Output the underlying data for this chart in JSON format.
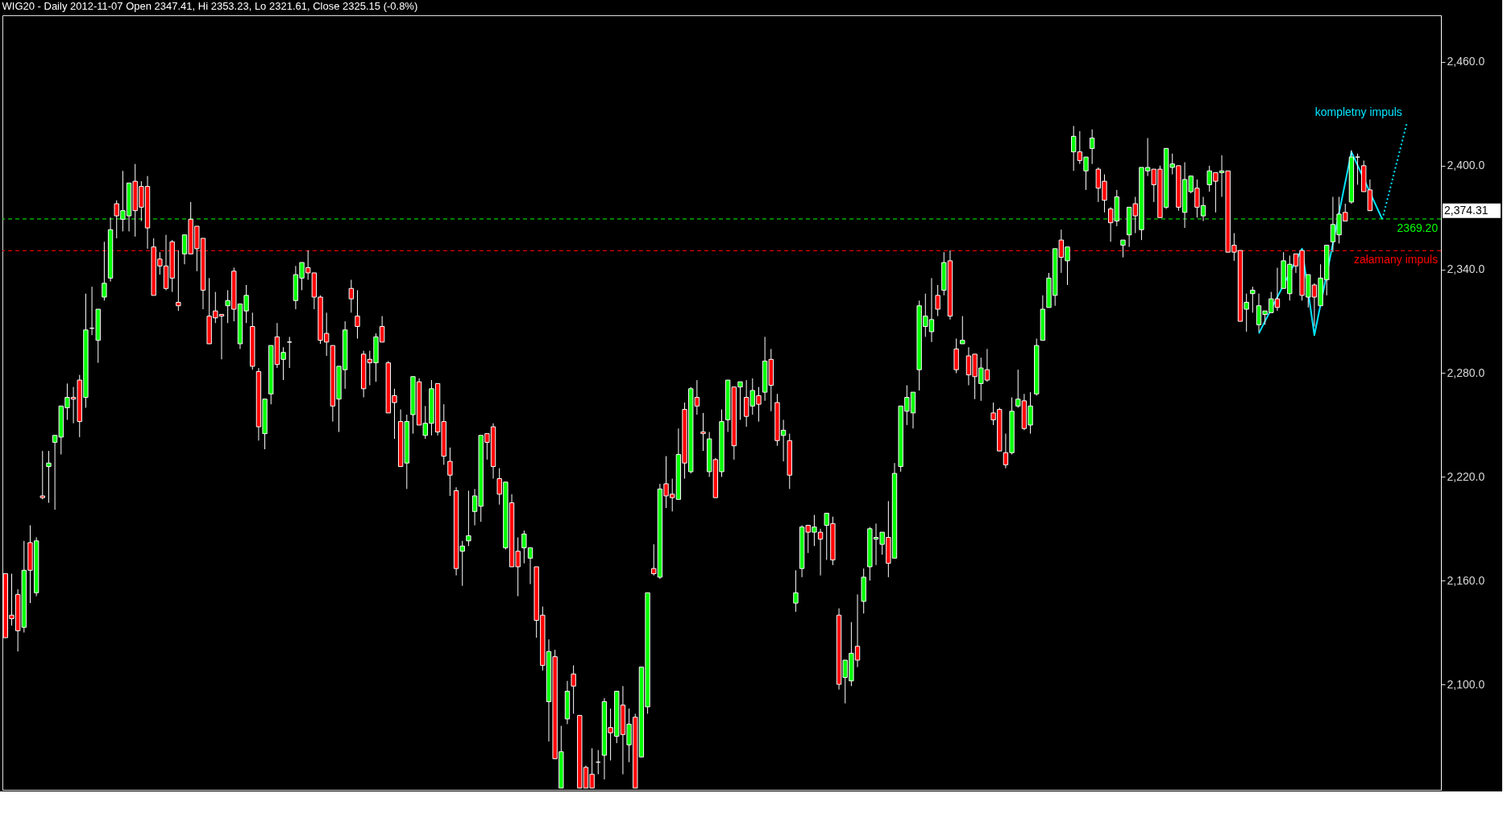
{
  "chart_data": {
    "type": "candlestick",
    "title": "WIG20 - Daily 2012-11-07 Open 2347.41, Hi 2353.23, Lo 2321.61, Close 2325.15 (-0.8%)",
    "categories": [
      null,
      null,
      null,
      null,
      null,
      null,
      null,
      null,
      null,
      null,
      null,
      null,
      null,
      null,
      null,
      null,
      null,
      null,
      null,
      null,
      null,
      null,
      null,
      null,
      null,
      null,
      null,
      null,
      null,
      null,
      null,
      null,
      null,
      null,
      null,
      null,
      null,
      null,
      null,
      null,
      null,
      null,
      null,
      null,
      null,
      null,
      null,
      null,
      null,
      null,
      null,
      null,
      null,
      null,
      null,
      null,
      null,
      null,
      null,
      null,
      null,
      null,
      null,
      null,
      null,
      null,
      null,
      null,
      null,
      null,
      null,
      null,
      null,
      null,
      null,
      null,
      null,
      null,
      null,
      null,
      null,
      null,
      null,
      null,
      null,
      null,
      null,
      null,
      null,
      null,
      null,
      null,
      null,
      null,
      null,
      null,
      null,
      null,
      null,
      null,
      null,
      null,
      null,
      null,
      null,
      null,
      null,
      null,
      null,
      null,
      null,
      null,
      null,
      null,
      null,
      null,
      null,
      null,
      null,
      null,
      null,
      null,
      null,
      null,
      null,
      null,
      null,
      null,
      null,
      null,
      null,
      null,
      null,
      null,
      null,
      null,
      null,
      null,
      null,
      null,
      null,
      null,
      null,
      null,
      null,
      null,
      null,
      null,
      null,
      null,
      null,
      null,
      null,
      null,
      null,
      null,
      null,
      null,
      null,
      null,
      null,
      null,
      null,
      null,
      null,
      null,
      null,
      null,
      null,
      null,
      null,
      null,
      null,
      null,
      null,
      null,
      null,
      null,
      null,
      null,
      null,
      null,
      null,
      null,
      null,
      null,
      null,
      null,
      null,
      null,
      null,
      null,
      null,
      null,
      null,
      null,
      null,
      null,
      null,
      null,
      null,
      null,
      null,
      null,
      null,
      null,
      null,
      null,
      null,
      null,
      null,
      null,
      null,
      null,
      null,
      null,
      null,
      null,
      null,
      null,
      null,
      null,
      null,
      null,
      null,
      null,
      null,
      null,
      null,
      null,
      null,
      null,
      null
    ],
    "ohlc": [
      [
        2164,
        2164,
        2127,
        2127
      ],
      [
        2140,
        2164,
        2134,
        2138
      ],
      [
        2152,
        2155,
        2119,
        2131
      ],
      [
        2133,
        2183,
        2130,
        2166
      ],
      [
        2182,
        2192,
        2147,
        2166
      ],
      [
        2153,
        2185,
        2151,
        2183
      ],
      [
        2209,
        2235,
        2207,
        2208
      ],
      [
        2226,
        2235,
        2205,
        2228
      ],
      [
        2240,
        2244,
        2201,
        2244
      ],
      [
        2243,
        2261,
        2233,
        2261
      ],
      [
        2260,
        2274,
        2253,
        2266
      ],
      [
        2266,
        2272,
        2251,
        2265
      ],
      [
        2276,
        2279,
        2243,
        2252
      ],
      [
        2266,
        2326,
        2260,
        2305
      ],
      [
        2306,
        2330,
        2302,
        2306
      ],
      [
        2299,
        2317,
        2286,
        2317
      ],
      [
        2324,
        2356,
        2322,
        2332
      ],
      [
        2335,
        2370,
        2333,
        2363
      ],
      [
        2378,
        2380,
        2358,
        2371
      ],
      [
        2369,
        2397,
        2362,
        2374
      ],
      [
        2371,
        2390,
        2362,
        2390
      ],
      [
        2391,
        2401,
        2359,
        2374
      ],
      [
        2388,
        2391,
        2368,
        2376
      ],
      [
        2388,
        2394,
        2352,
        2364
      ],
      [
        2353,
        2358,
        2325,
        2325
      ],
      [
        2346,
        2350,
        2337,
        2342
      ],
      [
        2342,
        2360,
        2328,
        2329
      ],
      [
        2356,
        2357,
        2327,
        2335
      ],
      [
        2321,
        2351,
        2316,
        2319
      ],
      [
        2349,
        2360,
        2343,
        2360
      ],
      [
        2369,
        2379,
        2349,
        2349
      ],
      [
        2365,
        2365,
        2339,
        2352
      ],
      [
        2358,
        2358,
        2317,
        2328
      ],
      [
        2313,
        2335,
        2297,
        2297
      ],
      [
        2316,
        2327,
        2309,
        2312
      ],
      [
        2314,
        2314,
        2288,
        2313
      ],
      [
        2319,
        2328,
        2309,
        2322
      ],
      [
        2339,
        2341,
        2310,
        2317
      ],
      [
        2297,
        2320,
        2294,
        2320
      ],
      [
        2316,
        2331,
        2309,
        2325
      ],
      [
        2307,
        2315,
        2282,
        2284
      ],
      [
        2281,
        2283,
        2241,
        2249
      ],
      [
        2245,
        2265,
        2236,
        2265
      ],
      [
        2268,
        2296,
        2262,
        2296
      ],
      [
        2301,
        2309,
        2283,
        2285
      ],
      [
        2288,
        2295,
        2276,
        2292
      ],
      [
        2298,
        2301,
        2283,
        2298
      ],
      [
        2322,
        2342,
        2317,
        2337
      ],
      [
        2335,
        2344,
        2328,
        2344
      ],
      [
        2341,
        2351,
        2334,
        2338
      ],
      [
        2338,
        2338,
        2317,
        2324
      ],
      [
        2324,
        2325,
        2297,
        2299
      ],
      [
        2303,
        2315,
        2290,
        2298
      ],
      [
        2296,
        2296,
        2252,
        2261
      ],
      [
        2265,
        2284,
        2246,
        2284
      ],
      [
        2282,
        2310,
        2271,
        2305
      ],
      [
        2329,
        2334,
        2315,
        2323
      ],
      [
        2313,
        2328,
        2300,
        2307
      ],
      [
        2291,
        2293,
        2266,
        2271
      ],
      [
        2288,
        2293,
        2273,
        2286
      ],
      [
        2286,
        2303,
        2275,
        2301
      ],
      [
        2307,
        2313,
        2298,
        2298
      ],
      [
        2286,
        2287,
        2257,
        2257
      ],
      [
        2267,
        2271,
        2242,
        2263
      ],
      [
        2252,
        2259,
        2226,
        2226
      ],
      [
        2228,
        2256,
        2213,
        2252
      ],
      [
        2256,
        2278,
        2245,
        2278
      ],
      [
        2275,
        2277,
        2250,
        2250
      ],
      [
        2244,
        2261,
        2242,
        2251
      ],
      [
        2251,
        2276,
        2244,
        2271
      ],
      [
        2274,
        2274,
        2244,
        2246
      ],
      [
        2252,
        2262,
        2227,
        2232
      ],
      [
        2229,
        2237,
        2209,
        2221
      ],
      [
        2212,
        2214,
        2163,
        2167
      ],
      [
        2177,
        2183,
        2157,
        2180
      ],
      [
        2183,
        2212,
        2180,
        2186
      ],
      [
        2200,
        2213,
        2192,
        2209
      ],
      [
        2203,
        2244,
        2194,
        2244
      ],
      [
        2245,
        2245,
        2230,
        2240
      ],
      [
        2249,
        2251,
        2219,
        2226
      ],
      [
        2219,
        2225,
        2204,
        2210
      ],
      [
        2179,
        2217,
        2178,
        2217
      ],
      [
        2205,
        2210,
        2168,
        2168
      ],
      [
        2177,
        2185,
        2151,
        2168
      ],
      [
        2179,
        2189,
        2170,
        2187
      ],
      [
        2173,
        2179,
        2158,
        2179
      ],
      [
        2168,
        2168,
        2127,
        2137
      ],
      [
        2140,
        2145,
        2108,
        2111
      ],
      [
        2090,
        2126,
        2067,
        2119
      ],
      [
        2116,
        2120,
        2057,
        2057
      ],
      [
        2040,
        2076,
        2040,
        2061
      ],
      [
        2080,
        2102,
        2077,
        2096
      ],
      [
        2106,
        2111,
        2083,
        2099
      ],
      [
        2082,
        2082,
        2040,
        2040
      ],
      [
        2052,
        2053,
        2040,
        2040
      ],
      [
        2048,
        2063,
        2040,
        2040
      ],
      [
        2055,
        2062,
        2048,
        2055
      ],
      [
        2059,
        2092,
        2045,
        2090
      ],
      [
        2075,
        2086,
        2056,
        2072
      ],
      [
        2070,
        2096,
        2066,
        2096
      ],
      [
        2088,
        2099,
        2048,
        2071
      ],
      [
        2065,
        2086,
        2055,
        2077
      ],
      [
        2081,
        2083,
        2040,
        2040
      ],
      [
        2058,
        2110,
        2058,
        2110
      ],
      [
        2087,
        2153,
        2083,
        2153
      ],
      [
        2167,
        2181,
        2163,
        2164
      ],
      [
        2162,
        2216,
        2161,
        2213
      ],
      [
        2216,
        2232,
        2202,
        2209
      ],
      [
        2210,
        2219,
        2200,
        2208
      ],
      [
        2207,
        2248,
        2207,
        2233
      ],
      [
        2259,
        2263,
        2219,
        2228
      ],
      [
        2223,
        2272,
        2222,
        2271
      ],
      [
        2266,
        2276,
        2256,
        2261
      ],
      [
        2246,
        2257,
        2235,
        2245
      ],
      [
        2223,
        2246,
        2220,
        2242
      ],
      [
        2230,
        2231,
        2208,
        2208
      ],
      [
        2223,
        2259,
        2220,
        2252
      ],
      [
        2253,
        2276,
        2246,
        2276
      ],
      [
        2272,
        2272,
        2230,
        2238
      ],
      [
        2272,
        2275,
        2253,
        2275
      ],
      [
        2266,
        2276,
        2249,
        2255
      ],
      [
        2261,
        2277,
        2256,
        2270
      ],
      [
        2267,
        2272,
        2252,
        2262
      ],
      [
        2269,
        2301,
        2264,
        2287
      ],
      [
        2288,
        2294,
        2258,
        2273
      ],
      [
        2263,
        2268,
        2238,
        2241
      ],
      [
        2244,
        2253,
        2229,
        2247
      ],
      [
        2241,
        2245,
        2213,
        2221
      ],
      [
        2147,
        2166,
        2142,
        2153
      ],
      [
        2167,
        2192,
        2162,
        2191
      ],
      [
        2192,
        2192,
        2176,
        2188
      ],
      [
        2188,
        2198,
        2180,
        2191
      ],
      [
        2188,
        2190,
        2163,
        2184
      ],
      [
        2192,
        2199,
        2172,
        2199
      ],
      [
        2193,
        2197,
        2169,
        2172
      ],
      [
        2140,
        2144,
        2097,
        2100
      ],
      [
        2104,
        2114,
        2089,
        2114
      ],
      [
        2102,
        2136,
        2099,
        2118
      ],
      [
        2122,
        2152,
        2110,
        2114
      ],
      [
        2148,
        2167,
        2141,
        2162
      ],
      [
        2168,
        2191,
        2160,
        2190
      ],
      [
        2184,
        2193,
        2169,
        2185
      ],
      [
        2181,
        2188,
        2175,
        2188
      ],
      [
        2185,
        2206,
        2162,
        2170
      ],
      [
        2173,
        2228,
        2173,
        2222
      ],
      [
        2226,
        2261,
        2223,
        2261
      ],
      [
        2258,
        2273,
        2250,
        2266
      ],
      [
        2257,
        2269,
        2248,
        2269
      ],
      [
        2282,
        2322,
        2270,
        2319
      ],
      [
        2307,
        2326,
        2301,
        2313
      ],
      [
        2304,
        2335,
        2298,
        2311
      ],
      [
        2325,
        2331,
        2313,
        2317
      ],
      [
        2328,
        2350,
        2325,
        2344
      ],
      [
        2345,
        2351,
        2311,
        2313
      ],
      [
        2294,
        2300,
        2280,
        2282
      ],
      [
        2297,
        2313,
        2297,
        2299
      ],
      [
        2290,
        2295,
        2273,
        2279
      ],
      [
        2291,
        2291,
        2265,
        2278
      ],
      [
        2274,
        2289,
        2264,
        2283
      ],
      [
        2282,
        2294,
        2275,
        2276
      ],
      [
        2257,
        2263,
        2250,
        2253
      ],
      [
        2259,
        2260,
        2235,
        2235
      ],
      [
        2234,
        2245,
        2225,
        2227
      ],
      [
        2234,
        2266,
        2233,
        2258
      ],
      [
        2261,
        2282,
        2260,
        2265
      ],
      [
        2264,
        2268,
        2247,
        2248
      ],
      [
        2250,
        2269,
        2245,
        2261
      ],
      [
        2268,
        2300,
        2267,
        2296
      ],
      [
        2299,
        2325,
        2299,
        2317
      ],
      [
        2318,
        2338,
        2318,
        2335
      ],
      [
        2325,
        2352,
        2319,
        2352
      ],
      [
        2357,
        2363,
        2338,
        2347
      ],
      [
        2345,
        2353,
        2331,
        2353
      ],
      [
        2408,
        2423,
        2397,
        2417
      ],
      [
        2408,
        2420,
        2401,
        2403
      ],
      [
        2397,
        2405,
        2386,
        2405
      ],
      [
        2410,
        2421,
        2401,
        2416
      ],
      [
        2398,
        2399,
        2379,
        2387
      ],
      [
        2391,
        2395,
        2373,
        2380
      ],
      [
        2375,
        2376,
        2356,
        2367
      ],
      [
        2368,
        2386,
        2365,
        2382
      ],
      [
        2354,
        2357,
        2347,
        2357
      ],
      [
        2360,
        2376,
        2353,
        2376
      ],
      [
        2378,
        2382,
        2361,
        2371
      ],
      [
        2363,
        2399,
        2357,
        2399
      ],
      [
        2397,
        2416,
        2394,
        2399
      ],
      [
        2398,
        2398,
        2379,
        2389
      ],
      [
        2398,
        2400,
        2370,
        2370
      ],
      [
        2376,
        2410,
        2375,
        2410
      ],
      [
        2399,
        2407,
        2395,
        2401
      ],
      [
        2400,
        2400,
        2374,
        2376
      ],
      [
        2373,
        2402,
        2364,
        2392
      ],
      [
        2385,
        2394,
        2384,
        2394
      ],
      [
        2387,
        2392,
        2370,
        2376
      ],
      [
        2371,
        2382,
        2368,
        2377
      ],
      [
        2389,
        2400,
        2385,
        2397
      ],
      [
        2396,
        2396,
        2373,
        2391
      ],
      [
        2396,
        2406,
        2382,
        2397
      ],
      [
        2397,
        2397,
        2350,
        2350
      ],
      [
        2354,
        2361,
        2345,
        2350
      ],
      [
        2351,
        2351,
        2310,
        2310
      ],
      [
        2317,
        2326,
        2304,
        2321
      ],
      [
        2326,
        2330,
        2315,
        2328
      ],
      [
        2308,
        2326,
        2304,
        2319
      ],
      [
        2314,
        2316,
        2308,
        2316
      ],
      [
        2315,
        2327,
        2315,
        2323
      ],
      [
        2323,
        2341,
        2316,
        2318
      ],
      [
        2329,
        2350,
        2329,
        2345
      ],
      [
        2326,
        2348,
        2322,
        2343
      ],
      [
        2349,
        2349,
        2338,
        2342
      ],
      [
        2351,
        2351,
        2322,
        2325
      ],
      [
        2324,
        2337,
        2318,
        2337
      ],
      [
        2331,
        2332,
        2307,
        2324
      ],
      [
        2319,
        2343,
        2319,
        2335
      ],
      [
        2334,
        2354,
        2325,
        2354
      ],
      [
        2356,
        2382,
        2350,
        2366
      ],
      [
        2360,
        2382,
        2355,
        2372
      ],
      [
        2373,
        2378,
        2368,
        2368
      ],
      [
        2379,
        2409,
        2378,
        2405
      ],
      [
        2405,
        2407,
        2389,
        2405
      ],
      [
        2400,
        2403,
        2385,
        2385
      ],
      [
        2386,
        2392,
        2374,
        2374
      ],
      null,
      null,
      null,
      null,
      null,
      null,
      null,
      null,
      null,
      null,
      null
    ],
    "colors": [
      "#ff0000",
      "#ff0000",
      "#ff0000",
      "#00ff00",
      "#ff0000",
      "#00ff00",
      "#ff0000",
      "#00ff00",
      "#00ff00",
      "#00ff00",
      "#00ff00",
      "#ff0000",
      "#ff0000",
      "#00ff00",
      "#ffffff",
      "#00ff00",
      "#00ff00",
      "#00ff00",
      "#ff0000",
      "#00ff00",
      "#00ff00",
      "#ff0000",
      "#ff0000",
      "#ff0000",
      "#ff0000",
      "#ff0000",
      "#ff0000",
      "#ff0000",
      "#ff0000",
      "#00ff00",
      "#ff0000",
      "#ff0000",
      "#ff0000",
      "#ff0000",
      "#ff0000",
      "#ff0000",
      "#00ff00",
      "#ff0000",
      "#00ff00",
      "#00ff00",
      "#ff0000",
      "#ff0000",
      "#00ff00",
      "#00ff00",
      "#ff0000",
      "#00ff00",
      "#ffffff",
      "#00ff00",
      "#00ff00",
      "#ff0000",
      "#ff0000",
      "#ff0000",
      "#ff0000",
      "#ff0000",
      "#00ff00",
      "#00ff00",
      "#ff0000",
      "#ff0000",
      "#ff0000",
      "#ff0000",
      "#00ff00",
      "#ff0000",
      "#ff0000",
      "#ff0000",
      "#ff0000",
      "#00ff00",
      "#00ff00",
      "#ff0000",
      "#00ff00",
      "#00ff00",
      "#ff0000",
      "#ff0000",
      "#ff0000",
      "#ff0000",
      "#00ff00",
      "#00ff00",
      "#00ff00",
      "#00ff00",
      "#ff0000",
      "#ff0000",
      "#ff0000",
      "#00ff00",
      "#ff0000",
      "#ff0000",
      "#00ff00",
      "#00ff00",
      "#ff0000",
      "#ff0000",
      "#00ff00",
      "#ff0000",
      "#00ff00",
      "#00ff00",
      "#ff0000",
      "#ff0000",
      "#ff0000",
      "#ff0000",
      "#ffffff",
      "#00ff00",
      "#ff0000",
      "#00ff00",
      "#ff0000",
      "#00ff00",
      "#ff0000",
      "#00ff00",
      "#00ff00",
      "#ff0000",
      "#00ff00",
      "#ff0000",
      "#ff0000",
      "#00ff00",
      "#ff0000",
      "#00ff00",
      "#ff0000",
      "#ff0000",
      "#00ff00",
      "#ff0000",
      "#00ff00",
      "#00ff00",
      "#ff0000",
      "#00ff00",
      "#ff0000",
      "#00ff00",
      "#ff0000",
      "#00ff00",
      "#ff0000",
      "#ff0000",
      "#00ff00",
      "#ff0000",
      "#00ff00",
      "#00ff00",
      "#ff0000",
      "#00ff00",
      "#ff0000",
      "#00ff00",
      "#ff0000",
      "#ff0000",
      "#00ff00",
      "#00ff00",
      "#ff0000",
      "#00ff00",
      "#00ff00",
      "#00ff00",
      "#00ff00",
      "#ff0000",
      "#00ff00",
      "#00ff00",
      "#00ff00",
      "#00ff00",
      "#00ff00",
      "#00ff00",
      "#00ff00",
      "#ff0000",
      "#00ff00",
      "#ff0000",
      "#ff0000",
      "#00ff00",
      "#ff0000",
      "#ff0000",
      "#00ff00",
      "#ff0000",
      "#ff0000",
      "#ff0000",
      "#ff0000",
      "#00ff00",
      "#00ff00",
      "#ff0000",
      "#00ff00",
      "#00ff00",
      "#00ff00",
      "#00ff00",
      "#00ff00",
      "#ff0000",
      "#00ff00",
      "#00ff00",
      "#ff0000",
      "#00ff00",
      "#00ff00",
      "#ff0000",
      "#ff0000",
      "#ff0000",
      "#00ff00",
      "#00ff00",
      "#00ff00",
      "#ff0000",
      "#00ff00",
      "#00ff00",
      "#ff0000",
      "#ff0000",
      "#00ff00",
      "#00ff00",
      "#ff0000",
      "#00ff00",
      "#00ff00",
      "#ff0000",
      "#00ff00",
      "#00ff00",
      "#ff0000",
      "#00ff00",
      "#ff0000",
      "#ff0000",
      "#ff0000",
      "#00ff00",
      "#00ff00",
      "#00ff00",
      "#00ff00",
      "#00ff00",
      "#ff0000",
      "#00ff00",
      "#00ff00",
      "#ff0000",
      "#ff0000",
      "#00ff00",
      "#ff0000",
      "#00ff00",
      "#00ff00",
      "#00ff00",
      "#00ff00",
      "#ff0000",
      "#00ff00",
      "#ffffff",
      "#ff0000",
      "#ff0000",
      null,
      null,
      null,
      null,
      null,
      null,
      null,
      null,
      null,
      null,
      null
    ],
    "series": [
      {
        "type": "line",
        "color": "#00e5ff",
        "line_style": "solid",
        "values": [
          null,
          null,
          null,
          null,
          null,
          null,
          null,
          null,
          null,
          null,
          null,
          null,
          null,
          null,
          null,
          null,
          null,
          null,
          null,
          null,
          null,
          null,
          null,
          null,
          null,
          null,
          null,
          null,
          null,
          null,
          null,
          null,
          null,
          null,
          null,
          null,
          null,
          null,
          null,
          null,
          null,
          null,
          null,
          null,
          null,
          null,
          null,
          null,
          null,
          null,
          null,
          null,
          null,
          null,
          null,
          null,
          null,
          null,
          null,
          null,
          null,
          null,
          null,
          null,
          null,
          null,
          null,
          null,
          null,
          null,
          null,
          null,
          null,
          null,
          null,
          null,
          null,
          null,
          null,
          null,
          null,
          null,
          null,
          null,
          null,
          null,
          null,
          null,
          null,
          null,
          null,
          null,
          null,
          null,
          null,
          null,
          null,
          null,
          null,
          null,
          null,
          null,
          null,
          null,
          null,
          null,
          null,
          null,
          null,
          null,
          null,
          null,
          null,
          null,
          null,
          null,
          null,
          null,
          null,
          null,
          null,
          null,
          null,
          null,
          null,
          null,
          null,
          null,
          null,
          null,
          null,
          null,
          null,
          null,
          null,
          null,
          null,
          null,
          null,
          null,
          null,
          null,
          null,
          null,
          null,
          null,
          null,
          null,
          null,
          null,
          null,
          null,
          null,
          null,
          null,
          null,
          null,
          null,
          null,
          null,
          null,
          null,
          null,
          null,
          null,
          null,
          null,
          null,
          null,
          null,
          null,
          null,
          null,
          null,
          null,
          null,
          null,
          null,
          null,
          null,
          null,
          null,
          null,
          null,
          null,
          null,
          null,
          null,
          null,
          null,
          null,
          null,
          null,
          null,
          null,
          null,
          null,
          null,
          null,
          null,
          null,
          null,
          null,
          2303,
          null,
          null,
          null,
          null,
          null,
          null,
          2352,
          null,
          2302,
          null,
          null,
          null,
          null,
          null,
          2408,
          null,
          null,
          null,
          null,
          2369,
          null,
          null,
          null,
          null,
          null,
          null,
          null,
          null,
          null
        ]
      },
      {
        "type": "line",
        "name": "kompletny impuls",
        "color": "#00e5ff",
        "line_style": "dotted",
        "values": [
          null,
          null,
          null,
          null,
          null,
          null,
          null,
          null,
          null,
          null,
          null,
          null,
          null,
          null,
          null,
          null,
          null,
          null,
          null,
          null,
          null,
          null,
          null,
          null,
          null,
          null,
          null,
          null,
          null,
          null,
          null,
          null,
          null,
          null,
          null,
          null,
          null,
          null,
          null,
          null,
          null,
          null,
          null,
          null,
          null,
          null,
          null,
          null,
          null,
          null,
          null,
          null,
          null,
          null,
          null,
          null,
          null,
          null,
          null,
          null,
          null,
          null,
          null,
          null,
          null,
          null,
          null,
          null,
          null,
          null,
          null,
          null,
          null,
          null,
          null,
          null,
          null,
          null,
          null,
          null,
          null,
          null,
          null,
          null,
          null,
          null,
          null,
          null,
          null,
          null,
          null,
          null,
          null,
          null,
          null,
          null,
          null,
          null,
          null,
          null,
          null,
          null,
          null,
          null,
          null,
          null,
          null,
          null,
          null,
          null,
          null,
          null,
          null,
          null,
          null,
          null,
          null,
          null,
          null,
          null,
          null,
          null,
          null,
          null,
          null,
          null,
          null,
          null,
          null,
          null,
          null,
          null,
          null,
          null,
          null,
          null,
          null,
          null,
          null,
          null,
          null,
          null,
          null,
          null,
          null,
          null,
          null,
          null,
          null,
          null,
          null,
          null,
          null,
          null,
          null,
          null,
          null,
          null,
          null,
          null,
          null,
          null,
          null,
          null,
          null,
          null,
          null,
          null,
          null,
          null,
          null,
          null,
          null,
          null,
          null,
          null,
          null,
          null,
          null,
          null,
          null,
          null,
          null,
          null,
          null,
          null,
          null,
          null,
          null,
          null,
          null,
          null,
          null,
          null,
          null,
          null,
          null,
          null,
          null,
          null,
          null,
          null,
          null,
          null,
          null,
          null,
          null,
          null,
          null,
          null,
          null,
          null,
          null,
          null,
          null,
          null,
          null,
          null,
          null,
          null,
          null,
          null,
          null,
          2369,
          null,
          null,
          null,
          2425,
          null,
          null,
          null,
          null,
          null
        ]
      }
    ],
    "ref_lines": [
      {
        "axis": "y",
        "value": 2369.2,
        "label": "2369.20",
        "color": "#00ff00",
        "line_style": "dashed"
      },
      {
        "axis": "y",
        "value": 2350.8,
        "label": "załamany impuls",
        "color": "#ff0000",
        "line_style": "dashed"
      }
    ],
    "annotations": [
      "2,374.31"
    ],
    "ylim": [
      2039,
      2487
    ],
    "yticks": [
      {
        "value": 2100,
        "label": "2,100.0"
      },
      {
        "value": 2160,
        "label": "2,160.0"
      },
      {
        "value": 2220,
        "label": "2,220.0"
      },
      {
        "value": 2280,
        "label": "2,280.0"
      },
      {
        "value": 2340,
        "label": "2,340.0"
      },
      {
        "value": 2400,
        "label": "2,400.0"
      },
      {
        "value": 2460,
        "label": "2,460.0"
      }
    ],
    "grid": false,
    "tick_labels": "y"
  }
}
